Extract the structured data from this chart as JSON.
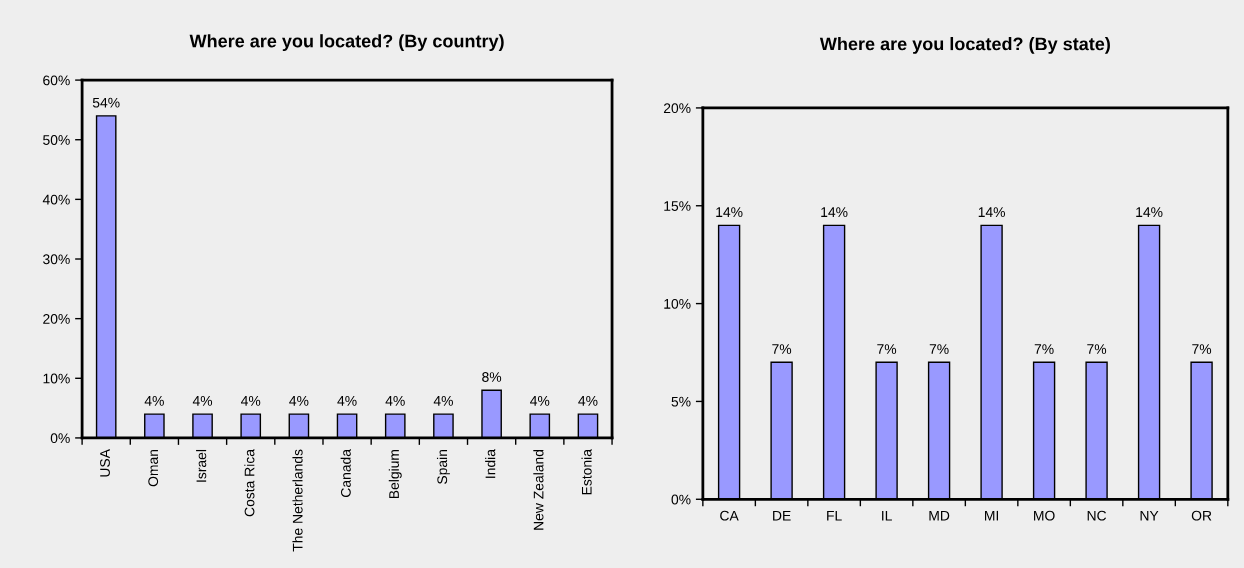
{
  "chart_data": [
    {
      "type": "bar",
      "title": "Where are you located? (By country)",
      "categories": [
        "USA",
        "Oman",
        "Israel",
        "Costa Rica",
        "The Netherlands",
        "Canada",
        "Belgium",
        "Spain",
        "India",
        "New Zealand",
        "Estonia"
      ],
      "values": [
        54,
        4,
        4,
        4,
        4,
        4,
        4,
        4,
        8,
        4,
        4
      ],
      "value_labels": [
        "54%",
        "4%",
        "4%",
        "4%",
        "4%",
        "4%",
        "4%",
        "4%",
        "8%",
        "4%",
        "4%"
      ],
      "color": "#9999ff",
      "ylim": [
        0,
        60
      ],
      "yticks": [
        {
          "value": 0,
          "label": "0%"
        },
        {
          "value": 10,
          "label": "10%"
        },
        {
          "value": 20,
          "label": "20%"
        },
        {
          "value": 30,
          "label": "30%"
        },
        {
          "value": 40,
          "label": "40%"
        },
        {
          "value": 50,
          "label": "50%"
        },
        {
          "value": 60,
          "label": "60%"
        }
      ],
      "grid": false,
      "legend": false
    },
    {
      "type": "bar",
      "title": "Where are you located? (By state)",
      "categories": [
        "CA",
        "DE",
        "FL",
        "IL",
        "MD",
        "MI",
        "MO",
        "NC",
        "NY",
        "OR"
      ],
      "values": [
        14,
        7,
        14,
        7,
        7,
        14,
        7,
        7,
        14,
        7
      ],
      "value_labels": [
        "14%",
        "7%",
        "14%",
        "7%",
        "7%",
        "14%",
        "7%",
        "7%",
        "14%",
        "7%"
      ],
      "color": "#9999ff",
      "ylim": [
        0,
        20
      ],
      "yticks": [
        {
          "value": 0,
          "label": "0%"
        },
        {
          "value": 5,
          "label": "5%"
        },
        {
          "value": 10,
          "label": "10%"
        },
        {
          "value": 15,
          "label": "15%"
        },
        {
          "value": 20,
          "label": "20%"
        }
      ],
      "grid": false,
      "legend": false
    }
  ]
}
